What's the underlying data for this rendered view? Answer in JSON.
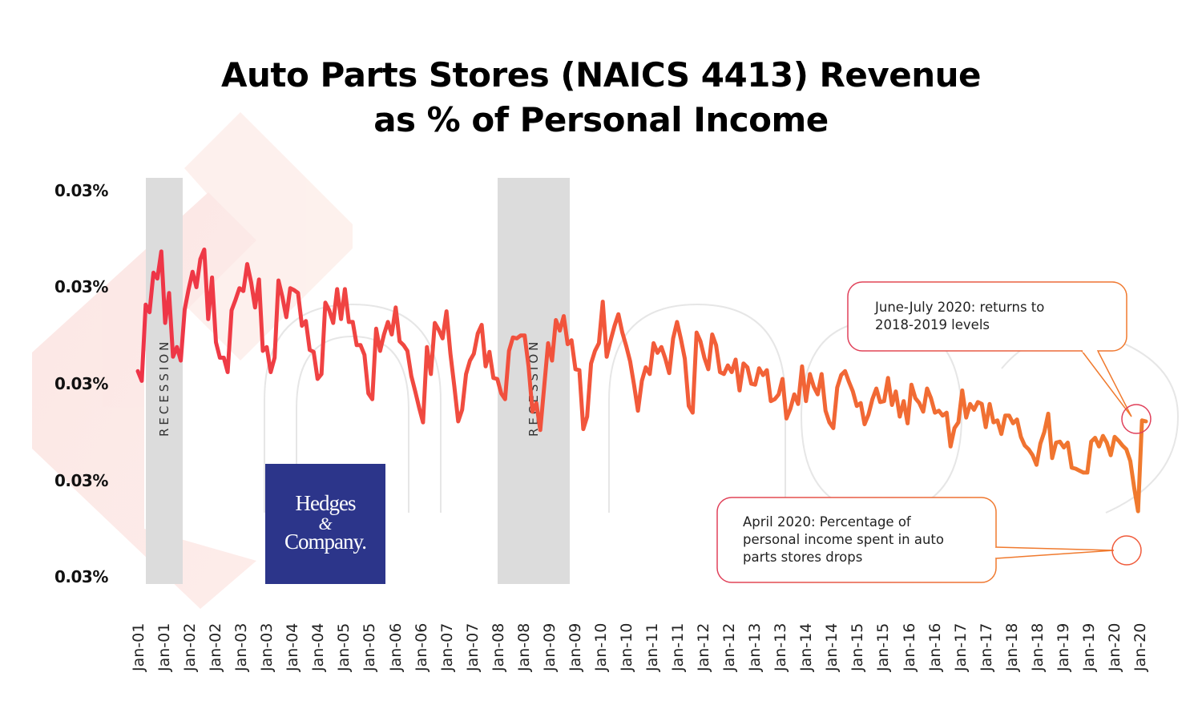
{
  "chart_data": {
    "type": "line",
    "title": "Auto Parts Stores (NAICS 4413) Revenue as % of Personal Income",
    "title_lines": [
      "Auto Parts Stores (NAICS 4413) Revenue",
      "as % of Personal Income"
    ],
    "xlabel": "",
    "ylabel": "",
    "y_tick_labels": [
      "0.03%",
      "0.03%",
      "0.03%",
      "0.03%",
      "0.03%"
    ],
    "x_tick_labels": [
      "Jan-01",
      "Jan-01",
      "Jan-02",
      "Jan-02",
      "Jan-03",
      "Jan-03",
      "Jan-04",
      "Jan-04",
      "Jan-05",
      "Jan-05",
      "Jan-06",
      "Jan-06",
      "Jan-07",
      "Jan-07",
      "Jan-08",
      "Jan-08",
      "Jan-09",
      "Jan-09",
      "Jan-10",
      "Jan-10",
      "Jan-11",
      "Jan-11",
      "Jan-12",
      "Jan-12",
      "Jan-13",
      "Jan-13",
      "Jan-14",
      "Jan-14",
      "Jan-15",
      "Jan-15",
      "Jan-16",
      "Jan-16",
      "Jan-17",
      "Jan-17",
      "Jan-18",
      "Jan-18",
      "Jan-19",
      "Jan-19",
      "Jan-20",
      "Jan-20"
    ],
    "ylim_normalized": [
      0,
      4
    ],
    "grid": false,
    "legend": null,
    "series": [
      {
        "name": "Auto parts stores revenue as % of personal income",
        "color_start": "#ee3448",
        "color_end": "#f07a2e",
        "note": "values normalized: 0 = bottom tick (y=720px), 4 = top tick (y=238px)",
        "values": [
          2.13,
          2.03,
          2.82,
          2.74,
          3.15,
          3.09,
          3.37,
          2.63,
          2.94,
          2.28,
          2.38,
          2.24,
          2.77,
          2.98,
          3.16,
          3.0,
          3.29,
          3.39,
          2.67,
          3.1,
          2.43,
          2.27,
          2.27,
          2.12,
          2.76,
          2.87,
          2.99,
          2.96,
          3.24,
          3.05,
          2.79,
          3.08,
          2.34,
          2.38,
          2.12,
          2.27,
          3.07,
          2.9,
          2.69,
          2.99,
          2.97,
          2.94,
          2.6,
          2.65,
          2.35,
          2.33,
          2.05,
          2.1,
          2.84,
          2.76,
          2.63,
          2.98,
          2.67,
          2.98,
          2.64,
          2.64,
          2.4,
          2.4,
          2.3,
          1.9,
          1.84,
          2.57,
          2.34,
          2.51,
          2.64,
          2.51,
          2.79,
          2.44,
          2.4,
          2.34,
          2.08,
          1.92,
          1.75,
          1.6,
          2.38,
          2.1,
          2.63,
          2.56,
          2.47,
          2.75,
          2.31,
          1.97,
          1.61,
          1.73,
          2.1,
          2.24,
          2.31,
          2.52,
          2.61,
          2.18,
          2.33,
          2.06,
          2.05,
          1.9,
          1.84,
          2.34,
          2.48,
          2.47,
          2.5,
          2.5,
          2.18,
          1.71,
          1.8,
          1.52,
          1.97,
          2.42,
          2.24,
          2.66,
          2.55,
          2.7,
          2.41,
          2.45,
          2.15,
          2.14,
          1.53,
          1.66,
          2.21,
          2.34,
          2.42,
          2.85,
          2.28,
          2.45,
          2.6,
          2.72,
          2.53,
          2.39,
          2.23,
          1.99,
          1.72,
          2.03,
          2.17,
          2.1,
          2.42,
          2.32,
          2.38,
          2.26,
          2.11,
          2.47,
          2.64,
          2.46,
          2.26,
          1.77,
          1.7,
          2.53,
          2.44,
          2.27,
          2.15,
          2.51,
          2.4,
          2.12,
          2.1,
          2.19,
          2.12,
          2.25,
          1.93,
          2.21,
          2.17,
          2.0,
          1.99,
          2.16,
          2.09,
          2.14,
          1.82,
          1.84,
          1.89,
          2.05,
          1.64,
          1.74,
          1.89,
          1.79,
          2.18,
          1.82,
          2.1,
          1.97,
          1.89,
          2.1,
          1.72,
          1.6,
          1.54,
          1.96,
          2.09,
          2.13,
          2.02,
          1.92,
          1.77,
          1.8,
          1.58,
          1.68,
          1.84,
          1.95,
          1.81,
          1.82,
          2.06,
          1.78,
          1.92,
          1.66,
          1.82,
          1.59,
          1.99,
          1.85,
          1.8,
          1.71,
          1.95,
          1.85,
          1.7,
          1.72,
          1.67,
          1.7,
          1.35,
          1.54,
          1.6,
          1.93,
          1.65,
          1.79,
          1.73,
          1.81,
          1.79,
          1.55,
          1.79,
          1.6,
          1.62,
          1.48,
          1.67,
          1.67,
          1.59,
          1.63,
          1.45,
          1.36,
          1.32,
          1.26,
          1.16,
          1.38,
          1.5,
          1.69,
          1.23,
          1.39,
          1.4,
          1.34,
          1.39,
          1.13,
          1.12,
          1.1,
          1.08,
          1.08,
          1.4,
          1.44,
          1.35,
          1.46,
          1.39,
          1.26,
          1.45,
          1.41,
          1.36,
          1.32,
          1.2,
          0.92,
          0.68,
          1.62,
          1.61
        ]
      }
    ],
    "shaded_regions": [
      {
        "label": "RECESSION",
        "start": "Mar-01",
        "end": "Nov-01"
      },
      {
        "label": "RECESSION",
        "start": "Dec-07",
        "end": "Jun-09"
      }
    ],
    "annotations": [
      {
        "text": "June-July 2020: returns to 2018-2019 levels",
        "target": "Jun-20"
      },
      {
        "text": "April 2020: Percentage of personal income spent in auto parts stores drops",
        "target": "Apr-20"
      }
    ]
  },
  "labels": {
    "recession": "RECESSION",
    "logo_line1": "Hedges",
    "logo_line2": "&",
    "logo_line3": "Company.",
    "callout_top_1": "June-July 2020: returns to",
    "callout_top_2": "2018-2019 levels",
    "callout_bottom_1": "April 2020: Percentage of",
    "callout_bottom_2": "personal income spent in auto",
    "callout_bottom_3": "parts stores drops"
  },
  "colors": {
    "line_start": "#ee3448",
    "line_end": "#f07a2e",
    "recession_band": "#dcdcdc",
    "logo_bg": "#2c358a",
    "callout_border_start": "#e0405a",
    "callout_border_end": "#f07a2e"
  }
}
